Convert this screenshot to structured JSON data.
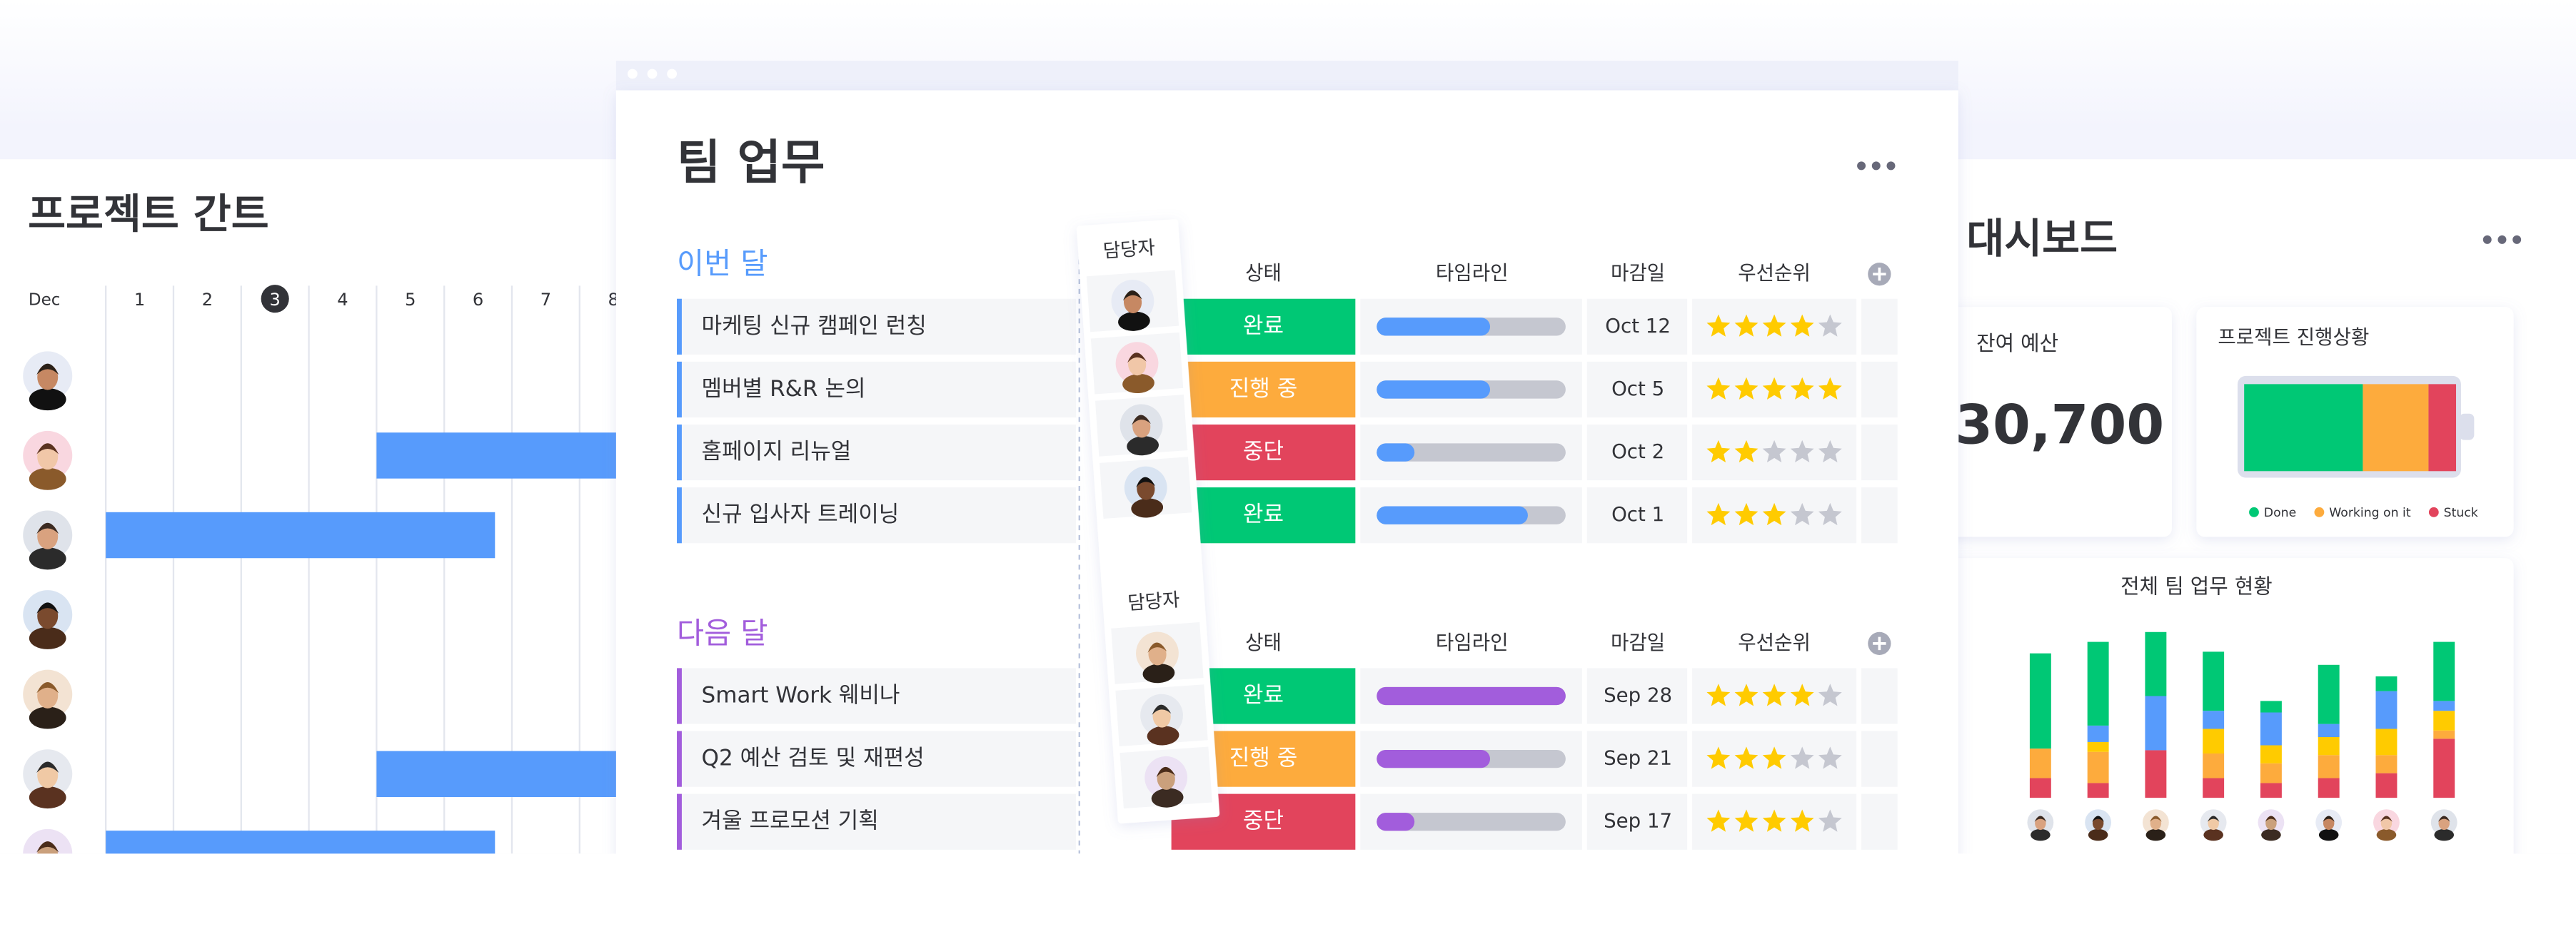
{
  "gantt": {
    "title": "프로젝트 간트",
    "month": "Dec",
    "days": [
      "1",
      "2",
      "3",
      "4",
      "5",
      "6",
      "7",
      "8"
    ],
    "today": "3",
    "rows": [
      null,
      [
        5,
        9
      ],
      [
        1,
        6.75
      ],
      null,
      null,
      [
        5,
        9
      ],
      [
        1,
        6.75
      ]
    ]
  },
  "board": {
    "title": "팀 업무",
    "columns": {
      "owner": "담당자",
      "status": "상태",
      "timeline": "타임라인",
      "due": "마감일",
      "priority": "우선순위"
    },
    "groups": [
      {
        "name": "이번 달",
        "color": "#579bfc",
        "items": [
          {
            "name": "마케팅 신규 캠페인 런칭",
            "status": "완료",
            "status_color": "#00c875",
            "timeline": 0.6,
            "due": "Oct 12",
            "priority": 4
          },
          {
            "name": "멤버별 R&R 논의",
            "status": "진행 중",
            "status_color": "#fdab3d",
            "timeline": 0.6,
            "due": "Oct 5",
            "priority": 5
          },
          {
            "name": "홈페이지 리뉴얼",
            "status": "중단",
            "status_color": "#e2445c",
            "timeline": 0.2,
            "due": "Oct 2",
            "priority": 2
          },
          {
            "name": "신규 입사자 트레이닝",
            "status": "완료",
            "status_color": "#00c875",
            "timeline": 0.8,
            "due": "Oct 1",
            "priority": 3
          }
        ]
      },
      {
        "name": "다음 달",
        "color": "#a25ddc",
        "items": [
          {
            "name": "Smart Work 웨비나",
            "status": "완료",
            "status_color": "#00c875",
            "timeline": 1.0,
            "due": "Sep 28",
            "priority": 4
          },
          {
            "name": "Q2 예산 검토 및 재편성",
            "status": "진행 중",
            "status_color": "#fdab3d",
            "timeline": 0.6,
            "due": "Sep 21",
            "priority": 3
          },
          {
            "name": "겨울 프로모션 기획",
            "status": "중단",
            "status_color": "#e2445c",
            "timeline": 0.2,
            "due": "Sep 17",
            "priority": 4
          }
        ]
      }
    ]
  },
  "dashboard": {
    "title": "대시보드",
    "budget": {
      "label": "잔여 예산",
      "value": "30,700"
    },
    "progress": {
      "title": "프로젝트 진행상황",
      "segments": [
        {
          "name": "Done",
          "color": "#00c875",
          "value": 56
        },
        {
          "name": "Working on it",
          "color": "#fdab3d",
          "value": 31
        },
        {
          "name": "Stuck",
          "color": "#e2445c",
          "value": 13
        }
      ]
    },
    "team": {
      "title": "전체 팀 업무 현황",
      "colors": [
        "#e2445c",
        "#fdab3d",
        "#ffcb00",
        "#579bfc",
        "#00c875"
      ],
      "bars": [
        [
          12,
          18,
          0,
          0,
          58
        ],
        [
          9,
          19,
          6,
          10,
          51
        ],
        [
          29,
          0,
          0,
          33,
          39
        ],
        [
          12,
          15,
          15,
          11,
          36
        ],
        [
          9,
          12,
          11,
          20,
          7
        ],
        [
          12,
          14,
          11,
          8,
          36
        ],
        [
          15,
          11,
          16,
          23,
          9
        ],
        [
          36,
          5,
          12,
          6,
          36
        ]
      ]
    }
  }
}
